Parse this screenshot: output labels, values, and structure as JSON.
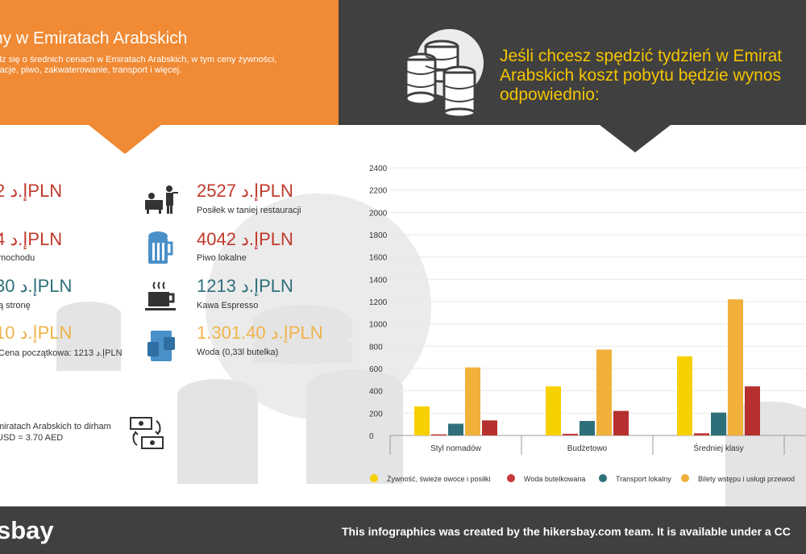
{
  "header": {
    "title": "ny w Emiratach Arabskich",
    "desc_line1": "dz się o średnich cenach w Emiratach Arabskich, w tym ceny żywności,",
    "desc_line2": "racje, piwo, zakwaterowanie, transport i więcej."
  },
  "right_header": {
    "line1": "Jeśli chcesz spędzić tydzień w Emirat",
    "line2": "Arabskich koszt pobytu będzie wynos",
    "line3": "odpowiednio:"
  },
  "prices": {
    "left": [
      {
        "value": "2 إ.دPLN",
        "label": "",
        "color": "#c0392b"
      },
      {
        "value": "4 إ.دPLN",
        "label": "mochodu",
        "color": "#c0392b"
      },
      {
        "value": "30 إ.دPLN",
        "label": "ą stronę",
        "color": "#2e6f7a"
      },
      {
        "value": "10 إ.دPLN",
        "label": "Cena początkowa: 1213 إ.دPLN",
        "color": "#f0b34a"
      }
    ],
    "right": [
      {
        "value": "2527 إ.دPLN",
        "label": "Posiłek w taniej restauracji",
        "color": "#c0392b",
        "icon": "restaurant-waiter-icon"
      },
      {
        "value": "4042 إ.دPLN",
        "label": "Piwo lokalne",
        "color": "#c0392b",
        "icon": "beer-mug-icon"
      },
      {
        "value": "1213 إ.دPLN",
        "label": "Kawa Espresso",
        "color": "#2e6f7a",
        "icon": "coffee-cup-icon"
      },
      {
        "value": "1.301.40 إ.دPLN",
        "label": "Woda (0,33l butelka)",
        "color": "#f0b34a",
        "icon": "water-glass-icon"
      }
    ]
  },
  "currency": {
    "line1": "miratach Arabskich to dirham",
    "line2": "USD = 3.70 AED",
    "icon": "currency-exchange-icon"
  },
  "footer": {
    "brand": "sbay",
    "credit": "This infographics was created by the hikersbay.com team. It is available under a CC"
  },
  "chart_data": {
    "type": "bar",
    "categories": [
      "Styl nomadów",
      "Budżetowo",
      "Średniej klasy"
    ],
    "series": [
      {
        "name": "Żywność, świeże owoce i posiłki",
        "values": [
          260,
          440,
          710
        ],
        "color": "#f7d000"
      },
      {
        "name": "Woda butelkowana",
        "values": [
          10,
          15,
          20
        ],
        "color": "#c8393a"
      },
      {
        "name": "Transport lokalny",
        "values": [
          105,
          130,
          205
        ],
        "color": "#2e6f7a"
      },
      {
        "name": "Bilety wstępu i usługi przewod",
        "values": [
          610,
          770,
          1220
        ],
        "color": "#f0b03a"
      },
      {
        "name": "",
        "values": [
          135,
          220,
          440
        ],
        "color": "#b5302e"
      }
    ],
    "yticks": [
      0,
      200,
      400,
      600,
      800,
      1000,
      1200,
      1400,
      1600,
      1800,
      2000,
      2200,
      2400
    ],
    "ylim": [
      0,
      2400
    ],
    "grid": true,
    "legend_position": "bottom"
  }
}
